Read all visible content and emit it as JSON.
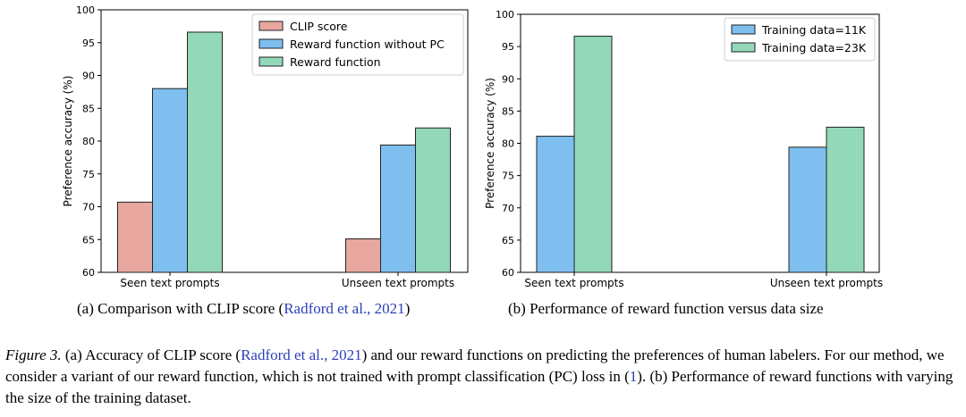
{
  "chart_data": [
    {
      "type": "bar",
      "categories": [
        "Seen text prompts",
        "Unseen text prompts"
      ],
      "series": [
        {
          "name": "CLIP score",
          "values": [
            70.7,
            65.1
          ],
          "color": "#e8a8a0"
        },
        {
          "name": "Reward function without PC",
          "values": [
            88.0,
            79.4
          ],
          "color": "#7fbff0"
        },
        {
          "name": "Reward function",
          "values": [
            96.6,
            82.0
          ],
          "color": "#93d8b8"
        }
      ],
      "ylabel": "Preference accuracy (%)",
      "ylim": [
        60,
        100
      ],
      "yticks": [
        60,
        65,
        70,
        75,
        80,
        85,
        90,
        95,
        100
      ],
      "legend_position": "top-right",
      "grid": false
    },
    {
      "type": "bar",
      "categories": [
        "Seen text prompts",
        "Unseen text prompts"
      ],
      "series": [
        {
          "name": "Training data=11K",
          "values": [
            81.1,
            79.4
          ],
          "color": "#7fbff0"
        },
        {
          "name": "Training data=23K",
          "values": [
            96.6,
            82.5
          ],
          "color": "#93d8b8"
        }
      ],
      "ylabel": "Preference accuracy (%)",
      "ylim": [
        60,
        100
      ],
      "yticks": [
        60,
        65,
        70,
        75,
        80,
        85,
        90,
        95,
        100
      ],
      "legend_position": "top-right",
      "grid": false
    }
  ],
  "subcaptions": {
    "a_prefix": "(a)  Comparison with CLIP score (",
    "a_cite": "Radford et al., 2021",
    "a_suffix": ")",
    "b_text": "(b)  Performance of reward function versus data size"
  },
  "caption": {
    "fig_label": "Figure 3.",
    "part1": " (a) Accuracy of CLIP score (",
    "cite1": "Radford et al., 2021",
    "part2": ") and our reward functions on predicting the preferences of human labelers. For our method, we consider a variant of our reward function, which is not trained with prompt classification (PC) loss in (",
    "ref": "1",
    "part3": "). (b) Performance of reward functions with varying the size of the training dataset."
  }
}
